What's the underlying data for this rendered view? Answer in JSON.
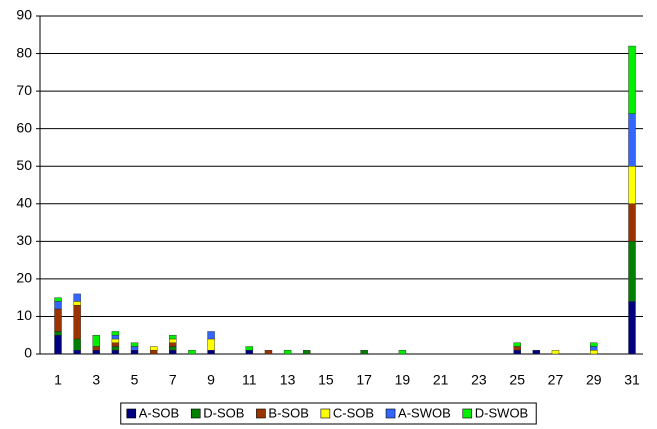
{
  "chart_data": {
    "type": "stacked_bar",
    "categories": [
      1,
      null,
      3,
      null,
      5,
      null,
      7,
      null,
      9,
      null,
      11,
      null,
      13,
      null,
      15,
      null,
      17,
      null,
      19,
      null,
      21,
      null,
      23,
      null,
      25,
      null,
      27,
      null,
      29,
      null,
      31
    ],
    "series": [
      {
        "name": "A-SOB",
        "color": "#000080",
        "values": [
          5,
          1,
          1,
          1,
          1,
          0,
          1,
          0,
          1,
          0,
          1,
          0,
          0,
          0,
          0,
          0,
          0,
          0,
          0,
          0,
          0,
          0,
          0,
          0,
          1,
          1,
          0,
          0,
          0,
          0,
          14
        ]
      },
      {
        "name": "D-SOB",
        "color": "#008000",
        "values": [
          1,
          3,
          0,
          1,
          0,
          0,
          1,
          0,
          0,
          0,
          0,
          0,
          0,
          1,
          0,
          0,
          1,
          0,
          0,
          0,
          0,
          0,
          0,
          0,
          0,
          0,
          0,
          0,
          0,
          0,
          16
        ]
      },
      {
        "name": "B-SOB",
        "color": "#993300",
        "values": [
          6,
          9,
          1,
          1,
          0,
          1,
          1,
          0,
          0,
          0,
          0,
          1,
          0,
          0,
          0,
          0,
          0,
          0,
          0,
          0,
          0,
          0,
          0,
          0,
          1,
          0,
          0,
          0,
          0,
          0,
          10
        ]
      },
      {
        "name": "C-SOB",
        "color": "#ffff00",
        "values": [
          0,
          1,
          0,
          1,
          0,
          1,
          1,
          0,
          3,
          0,
          0,
          0,
          0,
          0,
          0,
          0,
          0,
          0,
          0,
          0,
          0,
          0,
          0,
          0,
          0,
          0,
          1,
          0,
          1,
          0,
          10
        ]
      },
      {
        "name": "A-SWOB",
        "color": "#3366ff",
        "values": [
          2,
          2,
          0,
          1,
          1,
          0,
          0,
          0,
          2,
          0,
          0,
          0,
          0,
          0,
          0,
          0,
          0,
          0,
          0,
          0,
          0,
          0,
          0,
          0,
          0,
          0,
          0,
          0,
          1,
          0,
          14
        ]
      },
      {
        "name": "D-SWOB",
        "color": "#00ee00",
        "values": [
          1,
          0,
          3,
          1,
          1,
          0,
          1,
          1,
          0,
          0,
          1,
          0,
          1,
          0,
          0,
          0,
          0,
          0,
          1,
          0,
          0,
          0,
          0,
          0,
          1,
          0,
          0,
          0,
          1,
          0,
          18
        ]
      }
    ],
    "ylim": [
      0,
      90
    ],
    "yticks": [
      0,
      10,
      20,
      30,
      40,
      50,
      60,
      70,
      80,
      90
    ],
    "grid": true,
    "legend": "bottom"
  }
}
